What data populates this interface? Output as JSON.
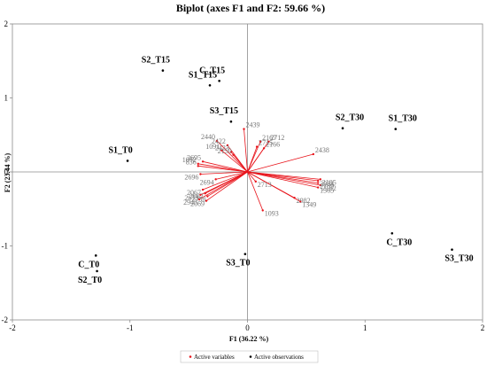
{
  "chart_data": {
    "type": "scatter",
    "title": "Biplot (axes F1 and F2: 59.66 %)",
    "xlabel": "F1 (36.22 %)",
    "ylabel": "F2 (23.44 %)",
    "xlim": [
      -2,
      2
    ],
    "ylim": [
      -2,
      2
    ],
    "xticks": [
      "-2",
      "-1",
      "0",
      "1",
      "2"
    ],
    "yticks": [
      "-2",
      "-1",
      "0",
      "1",
      "2"
    ],
    "grid": false,
    "legend_position": "bottom-center",
    "series": [
      {
        "name": "Active variables",
        "color": "#e8141b",
        "vectors": [
          {
            "label": "2440",
            "x": -0.26,
            "y": 0.42
          },
          {
            "label": "2422",
            "x": -0.17,
            "y": 0.36
          },
          {
            "label": "1091",
            "x": -0.22,
            "y": 0.29
          },
          {
            "label": "2423",
            "x": -0.14,
            "y": 0.27
          },
          {
            "label": "2150",
            "x": -0.12,
            "y": 0.23
          },
          {
            "label": "2695",
            "x": -0.38,
            "y": 0.14
          },
          {
            "label": "1092",
            "x": -0.42,
            "y": 0.11
          },
          {
            "label": "836",
            "x": -0.42,
            "y": 0.08
          },
          {
            "label": "2439",
            "x": -0.03,
            "y": 0.58
          },
          {
            "label": "2167",
            "x": 0.11,
            "y": 0.41
          },
          {
            "label": "2712",
            "x": 0.18,
            "y": 0.41
          },
          {
            "label": "2715",
            "x": 0.08,
            "y": 0.34
          },
          {
            "label": "2166",
            "x": 0.14,
            "y": 0.32
          },
          {
            "label": "2438",
            "x": 0.56,
            "y": 0.24
          },
          {
            "label": "2696",
            "x": -0.4,
            "y": -0.03
          },
          {
            "label": "2694",
            "x": -0.27,
            "y": -0.1
          },
          {
            "label": "2067",
            "x": -0.38,
            "y": -0.24
          },
          {
            "label": "2662",
            "x": -0.36,
            "y": -0.29
          },
          {
            "label": "2673",
            "x": -0.4,
            "y": -0.31
          },
          {
            "label": "2758",
            "x": -0.34,
            "y": -0.33
          },
          {
            "label": "2947",
            "x": -0.41,
            "y": -0.37
          },
          {
            "label": "2069",
            "x": -0.35,
            "y": -0.39
          },
          {
            "label": "2713",
            "x": 0.07,
            "y": -0.13
          },
          {
            "label": "2984",
            "x": 0.6,
            "y": -0.12
          },
          {
            "label": "2185",
            "x": 0.62,
            "y": -0.1
          },
          {
            "label": "2189",
            "x": 0.6,
            "y": -0.15
          },
          {
            "label": "2182",
            "x": 0.62,
            "y": -0.18
          },
          {
            "label": "1365",
            "x": 0.6,
            "y": -0.21
          },
          {
            "label": "2982",
            "x": 0.4,
            "y": -0.35
          },
          {
            "label": "1349",
            "x": 0.45,
            "y": -0.4
          },
          {
            "label": "1093",
            "x": 0.13,
            "y": -0.52
          }
        ]
      },
      {
        "name": "Active observations",
        "color": "#000000",
        "points": [
          {
            "label": "S2_T15",
            "x": -0.72,
            "y": 1.37
          },
          {
            "label": "C_T15",
            "x": -0.24,
            "y": 1.23
          },
          {
            "label": "S1_T15",
            "x": -0.32,
            "y": 1.17
          },
          {
            "label": "S3_T15",
            "x": -0.14,
            "y": 0.68
          },
          {
            "label": "S2_T30",
            "x": 0.81,
            "y": 0.59
          },
          {
            "label": "S1_T30",
            "x": 1.26,
            "y": 0.58
          },
          {
            "label": "S1_T0",
            "x": -1.02,
            "y": 0.15
          },
          {
            "label": "C_T0",
            "x": -1.29,
            "y": -1.13
          },
          {
            "label": "S2_T0",
            "x": -1.28,
            "y": -1.34
          },
          {
            "label": "S3_T0",
            "x": -0.02,
            "y": -1.11
          },
          {
            "label": "C_T30",
            "x": 1.23,
            "y": -0.83
          },
          {
            "label": "S3_T30",
            "x": 1.74,
            "y": -1.05
          }
        ]
      }
    ]
  }
}
